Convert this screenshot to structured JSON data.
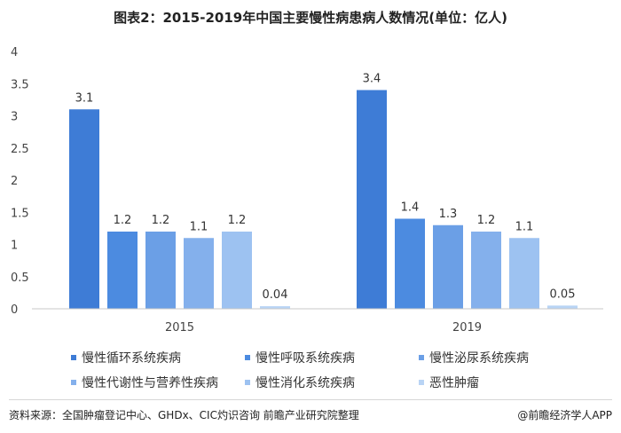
{
  "title": "图表2：2015-2019年中国主要慢性病患病人数情况(单位：亿人)",
  "chart_data": {
    "type": "bar",
    "categories": [
      "2015",
      "2019"
    ],
    "series": [
      {
        "name": "慢性循环系统疾病",
        "values": [
          3.1,
          3.4
        ],
        "color": "#3e7cd6"
      },
      {
        "name": "慢性呼吸系统疾病",
        "values": [
          1.2,
          1.4
        ],
        "color": "#4c8be0"
      },
      {
        "name": "慢性泌尿系统疾病",
        "values": [
          1.2,
          1.3
        ],
        "color": "#6b9fe6"
      },
      {
        "name": "慢性代谢性与营养性疾病",
        "values": [
          1.1,
          1.2
        ],
        "color": "#84b0ec"
      },
      {
        "name": "慢性消化系统疾病",
        "values": [
          1.2,
          1.1
        ],
        "color": "#9dc2f1"
      },
      {
        "name": "恶性肿瘤",
        "values": [
          0.04,
          0.05
        ],
        "color": "#b9d4f5"
      }
    ],
    "value_labels": [
      [
        "3.1",
        "1.2",
        "1.2",
        "1.1",
        "1.2",
        "0.04"
      ],
      [
        "3.4",
        "1.4",
        "1.3",
        "1.2",
        "1.1",
        "0.05"
      ]
    ],
    "yticks": [
      "0",
      "0.5",
      "1",
      "1.5",
      "2",
      "2.5",
      "3",
      "3.5",
      "4"
    ],
    "ylim": [
      0,
      4
    ],
    "grid": false,
    "legend_position": "bottom"
  },
  "footer": {
    "source": "资料来源：全国肿瘤登记中心、GHDx、CIC灼识咨询 前瞻产业研究院整理",
    "brand": "@前瞻经济学人APP"
  }
}
